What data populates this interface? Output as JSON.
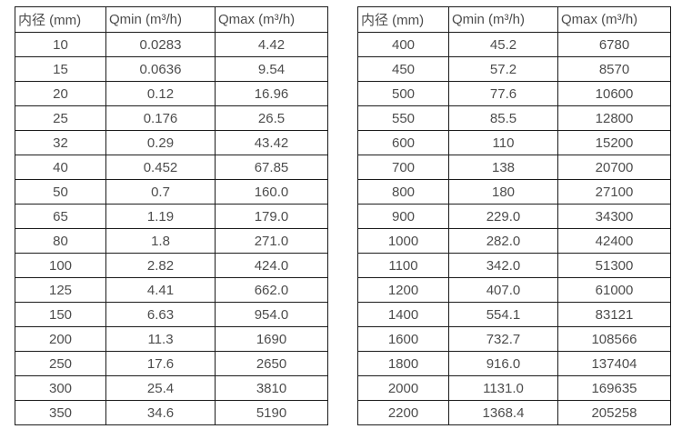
{
  "colors": {
    "background": "#ffffff",
    "border": "#1c1c1c",
    "text": "#4d4d4d"
  },
  "tables": [
    {
      "name": "small-diameters",
      "headers": [
        "内径 (mm)",
        "Qmin (m³/h)",
        "Qmax (m³/h)"
      ],
      "rows": [
        [
          "10",
          "0.0283",
          "4.42"
        ],
        [
          "15",
          "0.0636",
          "9.54"
        ],
        [
          "20",
          "0.12",
          "16.96"
        ],
        [
          "25",
          "0.176",
          "26.5"
        ],
        [
          "32",
          "0.29",
          "43.42"
        ],
        [
          "40",
          "0.452",
          "67.85"
        ],
        [
          "50",
          "0.7",
          "160.0"
        ],
        [
          "65",
          "1.19",
          "179.0"
        ],
        [
          "80",
          "1.8",
          "271.0"
        ],
        [
          "100",
          "2.82",
          "424.0"
        ],
        [
          "125",
          "4.41",
          "662.0"
        ],
        [
          "150",
          "6.63",
          "954.0"
        ],
        [
          "200",
          "11.3",
          "1690"
        ],
        [
          "250",
          "17.6",
          "2650"
        ],
        [
          "300",
          "25.4",
          "3810"
        ],
        [
          "350",
          "34.6",
          "5190"
        ]
      ]
    },
    {
      "name": "large-diameters",
      "headers": [
        "内径 (mm)",
        "Qmin (m³/h)",
        "Qmax (m³/h)"
      ],
      "rows": [
        [
          "400",
          "45.2",
          "6780"
        ],
        [
          "450",
          "57.2",
          "8570"
        ],
        [
          "500",
          "77.6",
          "10600"
        ],
        [
          "550",
          "85.5",
          "12800"
        ],
        [
          "600",
          "110",
          "15200"
        ],
        [
          "700",
          "138",
          "20700"
        ],
        [
          "800",
          "180",
          "27100"
        ],
        [
          "900",
          "229.0",
          "34300"
        ],
        [
          "1000",
          "282.0",
          "42400"
        ],
        [
          "1100",
          "342.0",
          "51300"
        ],
        [
          "1200",
          "407.0",
          "61000"
        ],
        [
          "1400",
          "554.1",
          "83121"
        ],
        [
          "1600",
          "732.7",
          "108566"
        ],
        [
          "1800",
          "916.0",
          "137404"
        ],
        [
          "2000",
          "1131.0",
          "169635"
        ],
        [
          "2200",
          "1368.4",
          "205258"
        ]
      ]
    }
  ]
}
